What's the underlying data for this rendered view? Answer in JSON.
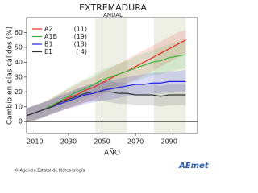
{
  "chart_data": {
    "type": "line",
    "title": "EXTREMADURA",
    "subtitle": "ANUAL",
    "y_label": "Cambio en días cálidos (%)",
    "x_label": "AÑO",
    "x": [
      2005,
      2010,
      2015,
      2020,
      2025,
      2030,
      2035,
      2040,
      2045,
      2050,
      2055,
      2060,
      2065,
      2070,
      2075,
      2080,
      2085,
      2090,
      2095,
      2100
    ],
    "series": [
      {
        "name": "A2",
        "legend_label": "(11)",
        "color": "#e8281e",
        "values": [
          4,
          6,
          8,
          11,
          13,
          16,
          18,
          21,
          23,
          26,
          29,
          32,
          34,
          37,
          40,
          43,
          46,
          49,
          52,
          55
        ],
        "upper": [
          9,
          11,
          13,
          16,
          19,
          22,
          25,
          28,
          30,
          33,
          36,
          39,
          42,
          45,
          48,
          51,
          54,
          57,
          60,
          62
        ],
        "lower": [
          0,
          1,
          3,
          5,
          7,
          9,
          11,
          13,
          15,
          18,
          21,
          23,
          26,
          28,
          31,
          34,
          37,
          40,
          43,
          46
        ]
      },
      {
        "name": "A1B",
        "legend_label": "(19)",
        "color": "#3cb43c",
        "values": [
          4,
          6,
          8,
          11,
          14,
          17,
          20,
          22,
          25,
          28,
          30,
          32,
          34,
          36,
          38,
          40,
          41,
          43,
          44,
          45
        ],
        "upper": [
          9,
          11,
          13,
          16,
          19,
          23,
          26,
          29,
          32,
          35,
          37,
          39,
          41,
          44,
          46,
          48,
          50,
          52,
          54,
          55
        ],
        "lower": [
          0,
          1,
          3,
          6,
          8,
          11,
          13,
          15,
          18,
          20,
          22,
          24,
          26,
          27,
          29,
          31,
          32,
          34,
          35,
          36
        ]
      },
      {
        "name": "B1",
        "legend_label": "(13)",
        "color": "#1e1ee6",
        "values": [
          4,
          6,
          8,
          10,
          12,
          14,
          16,
          18,
          19,
          21,
          22,
          23,
          24,
          25,
          25,
          26,
          26,
          27,
          27,
          27
        ],
        "upper": [
          9,
          11,
          13,
          15,
          17,
          19,
          22,
          24,
          25,
          27,
          28,
          29,
          30,
          31,
          32,
          33,
          33,
          34,
          34,
          35
        ],
        "lower": [
          0,
          1,
          3,
          5,
          7,
          9,
          10,
          12,
          13,
          14,
          15,
          16,
          17,
          18,
          18,
          19,
          19,
          20,
          20,
          20
        ]
      },
      {
        "name": "E1",
        "legend_label": "( 4)",
        "color": "#333333",
        "values": [
          4,
          6,
          8,
          10,
          13,
          15,
          17,
          19,
          20,
          20,
          20,
          19,
          19,
          18,
          18,
          18,
          17,
          18,
          18,
          18
        ],
        "upper": [
          9,
          11,
          13,
          15,
          18,
          20,
          22,
          24,
          26,
          27,
          27,
          26,
          26,
          25,
          25,
          25,
          24,
          25,
          25,
          25
        ],
        "lower": [
          0,
          1,
          3,
          5,
          7,
          9,
          11,
          13,
          14,
          14,
          13,
          12,
          12,
          11,
          11,
          11,
          10,
          11,
          11,
          11
        ]
      }
    ],
    "xlim": [
      2005,
      2107
    ],
    "ylim": [
      -8,
      70
    ],
    "xticks": [
      2010,
      2030,
      2050,
      2070,
      2090
    ],
    "yticks": [
      0,
      10,
      20,
      30,
      40,
      50,
      60
    ],
    "shaded_periods": [
      [
        2046,
        2065
      ],
      [
        2081,
        2100
      ]
    ],
    "reference_lines": {
      "x": 2050,
      "y": 0
    }
  },
  "footer": {
    "credit": "© Agencia Estatal de Meteorología",
    "logo": "AEmet"
  }
}
